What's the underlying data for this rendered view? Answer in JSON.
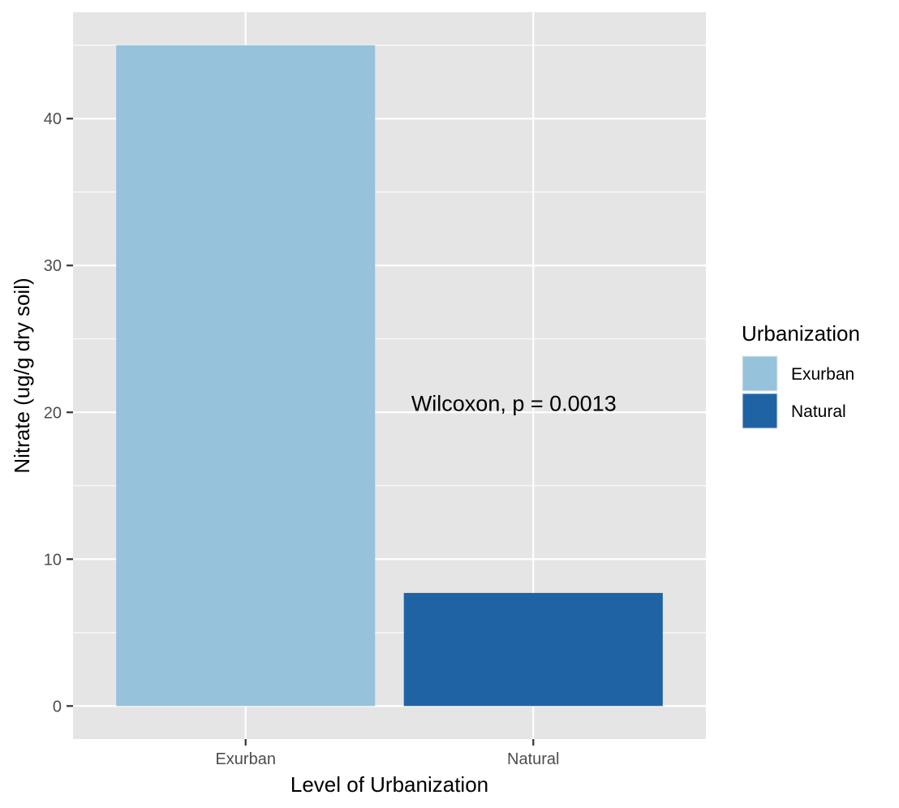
{
  "chart_data": {
    "type": "bar",
    "title": "",
    "xlabel": "Level of Urbanization",
    "ylabel": "Nitrate (ug/g dry soil)",
    "categories": [
      "Exurban",
      "Natural"
    ],
    "values": [
      45.0,
      7.7
    ],
    "colors": [
      "#96c2db",
      "#1f63a5"
    ],
    "yticks": [
      0,
      10,
      20,
      30,
      40
    ],
    "ylim": [
      -2.25,
      47.25
    ],
    "grid": true,
    "annotation": {
      "text": "Wilcoxon, p = 0.0013",
      "x_category": "Natural",
      "y": 20.6
    },
    "legend": {
      "title": "Urbanization",
      "position": "right",
      "items": [
        {
          "label": "Exurban",
          "color": "#96c2db"
        },
        {
          "label": "Natural",
          "color": "#1f63a5"
        }
      ]
    },
    "panel_background": "#e5e5e5",
    "grid_color": "#ffffff"
  }
}
